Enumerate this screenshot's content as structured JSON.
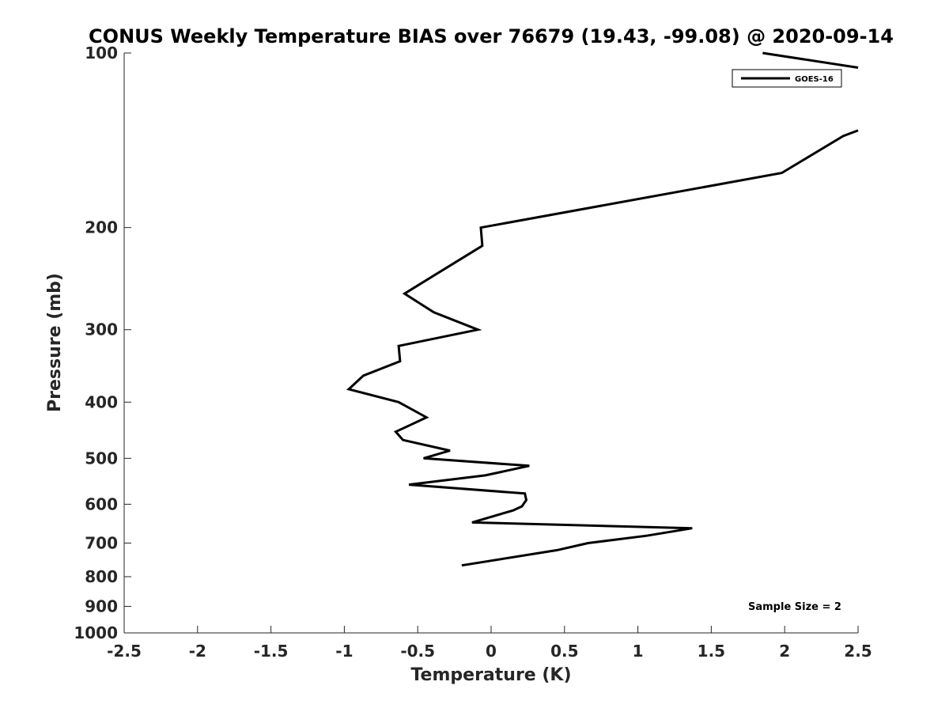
{
  "chart_data": {
    "type": "line",
    "title": "CONUS Weekly Temperature BIAS over 76679 (19.43, -99.08) @ 2020-09-14",
    "xlabel": "Temperature (K)",
    "ylabel": "Pressure (mb)",
    "xlim": [
      -2.5,
      2.5
    ],
    "ylim": [
      100,
      1000
    ],
    "y_scale": "log",
    "y_reversed": true,
    "grid": false,
    "x_ticks": [
      -2.5,
      -2,
      -1.5,
      -1,
      -0.5,
      0,
      0.5,
      1,
      1.5,
      2,
      2.5
    ],
    "x_tick_labels": [
      "-2.5",
      "-2",
      "-1.5",
      "-1",
      "-0.5",
      "0",
      "0.5",
      "1",
      "1.5",
      "2",
      "2.5"
    ],
    "y_ticks": [
      100,
      200,
      300,
      400,
      500,
      600,
      700,
      800,
      900,
      1000
    ],
    "y_tick_labels": [
      "100",
      "200",
      "300",
      "400",
      "500",
      "600",
      "700",
      "800",
      "900",
      "1000"
    ],
    "legend": {
      "placement": "top-right",
      "entries": [
        "GOES-16"
      ]
    },
    "annotation": "Sample Size = 2",
    "series": [
      {
        "name": "GOES-16",
        "color": "#000000",
        "segments": [
          [
            {
              "x": 1.85,
              "y": 100
            },
            {
              "x": 2.5,
              "y": 106
            }
          ],
          [
            {
              "x": 2.5,
              "y": 136
            },
            {
              "x": 2.4,
              "y": 139
            },
            {
              "x": 1.98,
              "y": 161
            },
            {
              "x": -0.07,
              "y": 200
            },
            {
              "x": -0.06,
              "y": 215
            },
            {
              "x": -0.39,
              "y": 242
            },
            {
              "x": -0.59,
              "y": 260
            },
            {
              "x": -0.39,
              "y": 280
            },
            {
              "x": -0.09,
              "y": 300
            },
            {
              "x": -0.63,
              "y": 320
            },
            {
              "x": -0.62,
              "y": 340
            },
            {
              "x": -0.87,
              "y": 360
            },
            {
              "x": -0.97,
              "y": 380
            },
            {
              "x": -0.63,
              "y": 400
            },
            {
              "x": -0.44,
              "y": 425
            },
            {
              "x": -0.65,
              "y": 450
            },
            {
              "x": -0.6,
              "y": 465
            },
            {
              "x": -0.28,
              "y": 485
            },
            {
              "x": -0.46,
              "y": 500
            },
            {
              "x": 0.26,
              "y": 515
            },
            {
              "x": -0.04,
              "y": 535
            },
            {
              "x": -0.56,
              "y": 555
            },
            {
              "x": 0.23,
              "y": 575
            },
            {
              "x": 0.24,
              "y": 590
            },
            {
              "x": 0.21,
              "y": 605
            },
            {
              "x": 0.15,
              "y": 615
            },
            {
              "x": -0.13,
              "y": 645
            },
            {
              "x": 1.37,
              "y": 660
            },
            {
              "x": 1.06,
              "y": 680
            },
            {
              "x": 0.66,
              "y": 700
            },
            {
              "x": 0.45,
              "y": 720
            },
            {
              "x": -0.2,
              "y": 765
            }
          ]
        ]
      }
    ]
  }
}
